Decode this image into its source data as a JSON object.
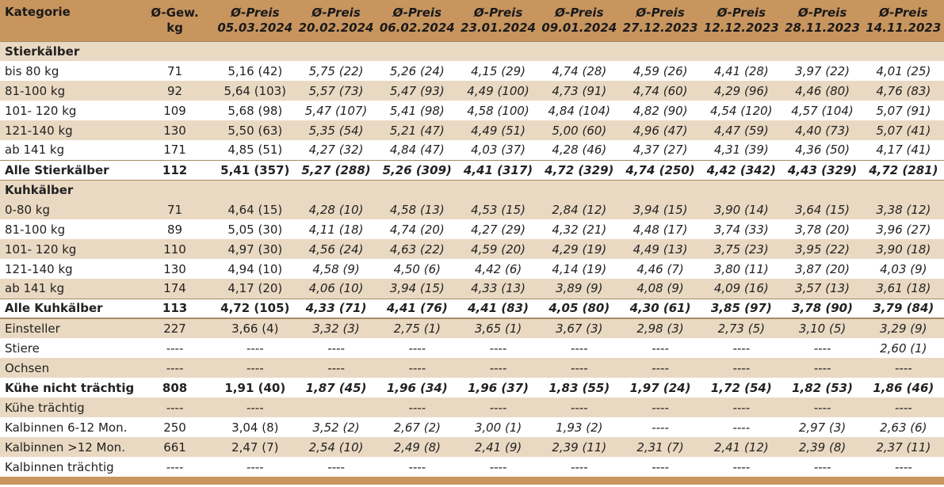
{
  "header": {
    "col0": "Kategorie",
    "col1_line1": "Ø-Gew.",
    "col1_line2": "kg",
    "price_label": "Ø-Preis",
    "dates": [
      "05.03.2024",
      "20.02.2024",
      "06.02.2024",
      "23.01.2024",
      "09.01.2024",
      "27.12.2023",
      "12.12.2023",
      "28.11.2023",
      "14.11.2023"
    ]
  },
  "sections": {
    "stier": "Stierkälber",
    "kuh": "Kuhkälber"
  },
  "rows": [
    {
      "label": "bis 80 kg",
      "kg": "71",
      "vals": [
        "5,16 (42)",
        "5,75 (22)",
        "5,26 (24)",
        "4,15 (29)",
        "4,74 (28)",
        "4,59 (26)",
        "4,41 (28)",
        "3,97 (22)",
        "4,01 (25)"
      ]
    },
    {
      "label": "81-100 kg",
      "kg": "92",
      "vals": [
        "5,64 (103)",
        "5,57 (73)",
        "5,47 (93)",
        "4,49 (100)",
        "4,73 (91)",
        "4,74 (60)",
        "4,29 (96)",
        "4,46 (80)",
        "4,76 (83)"
      ]
    },
    {
      "label": "101- 120 kg",
      "kg": "109",
      "vals": [
        "5,68 (98)",
        "5,47 (107)",
        "5,41 (98)",
        "4,58 (100)",
        "4,84 (104)",
        "4,82 (90)",
        "4,54 (120)",
        "4,57 (104)",
        "5,07 (91)"
      ]
    },
    {
      "label": "121-140 kg",
      "kg": "130",
      "vals": [
        "5,50 (63)",
        "5,35 (54)",
        "5,21 (47)",
        "4,49 (51)",
        "5,00 (60)",
        "4,96 (47)",
        "4,47 (59)",
        "4,40 (73)",
        "5,07 (41)"
      ]
    },
    {
      "label": "ab 141 kg",
      "kg": "171",
      "vals": [
        "4,85 (51)",
        "4,27 (32)",
        "4,84 (47)",
        "4,03 (37)",
        "4,28 (46)",
        "4,37 (27)",
        "4,31 (39)",
        "4,36 (50)",
        "4,17 (41)"
      ]
    },
    {
      "label": "Alle Stierkälber",
      "kg": "112",
      "vals": [
        "5,41 (357)",
        "5,27 (288)",
        "5,26 (309)",
        "4,41 (317)",
        "4,72 (329)",
        "4,74 (250)",
        "4,42 (342)",
        "4,43 (329)",
        "4,72 (281)"
      ]
    },
    {
      "label": "0-80 kg",
      "kg": "71",
      "vals": [
        "4,64 (15)",
        "4,28 (10)",
        "4,58 (13)",
        "4,53 (15)",
        "2,84 (12)",
        "3,94 (15)",
        "3,90 (14)",
        "3,64 (15)",
        "3,38 (12)"
      ]
    },
    {
      "label": "81-100 kg",
      "kg": "89",
      "vals": [
        "5,05 (30)",
        "4,11 (18)",
        "4,74 (20)",
        "4,27 (29)",
        "4,32 (21)",
        "4,48 (17)",
        "3,74 (33)",
        "3,78 (20)",
        "3,96 (27)"
      ]
    },
    {
      "label": "101- 120 kg",
      "kg": "110",
      "vals": [
        "4,97 (30)",
        "4,56 (24)",
        "4,63 (22)",
        "4,59 (20)",
        "4,29 (19)",
        "4,49 (13)",
        "3,75 (23)",
        "3,95 (22)",
        "3,90 (18)"
      ]
    },
    {
      "label": "121-140 kg",
      "kg": "130",
      "vals": [
        "4,94 (10)",
        "4,58 (9)",
        "4,50 (6)",
        "4,42 (6)",
        "4,14 (19)",
        "4,46 (7)",
        "3,80 (11)",
        "3,87 (20)",
        "4,03 (9)"
      ]
    },
    {
      "label": "ab 141 kg",
      "kg": "174",
      "vals": [
        "4,17 (20)",
        "4,06 (10)",
        "3,94 (15)",
        "4,33 (13)",
        "3,89 (9)",
        "4,08 (9)",
        "4,09 (16)",
        "3,57 (13)",
        "3,61 (18)"
      ]
    },
    {
      "label": "Alle Kuhkälber",
      "kg": "113",
      "vals": [
        "4,72 (105)",
        "4,33 (71)",
        "4,41 (76)",
        "4,41 (83)",
        "4,05 (80)",
        "4,30 (61)",
        "3,85 (97)",
        "3,78 (90)",
        "3,79 (84)"
      ]
    },
    {
      "label": "Einsteller",
      "kg": "227",
      "vals": [
        "3,66 (4)",
        "3,32 (3)",
        "2,75 (1)",
        "3,65 (1)",
        "3,67 (3)",
        "2,98 (3)",
        "2,73 (5)",
        "3,10 (5)",
        "3,29 (9)"
      ]
    },
    {
      "label": "Stiere",
      "kg": "----",
      "vals": [
        "----",
        "----",
        "----",
        "----",
        "----",
        "----",
        "----",
        "----",
        "2,60 (1)"
      ]
    },
    {
      "label": "Ochsen",
      "kg": "----",
      "vals": [
        "----",
        "----",
        "----",
        "----",
        "----",
        "----",
        "----",
        "----",
        "----"
      ]
    },
    {
      "label": "Kühe nicht trächtig",
      "kg": "808",
      "vals": [
        "1,91 (40)",
        "1,87 (45)",
        "1,96 (34)",
        "1,96 (37)",
        "1,83 (55)",
        "1,97 (24)",
        "1,72 (54)",
        "1,82 (53)",
        "1,86 (46)"
      ]
    },
    {
      "label": "Kühe trächtig",
      "kg": "----",
      "vals": [
        "----",
        "",
        "----",
        "----",
        "----",
        "----",
        "----",
        "----",
        "----"
      ]
    },
    {
      "label": "Kalbinnen 6-12 Mon.",
      "kg": "250",
      "vals": [
        "3,04 (8)",
        "3,52 (2)",
        "2,67 (2)",
        "3,00 (1)",
        "1,93 (2)",
        "----",
        "----",
        "2,97 (3)",
        "2,63 (6)"
      ]
    },
    {
      "label": "Kalbinnen >12 Mon.",
      "kg": "661",
      "vals": [
        "2,47 (7)",
        "2,54 (10)",
        "2,49 (8)",
        "2,41 (9)",
        "2,39 (11)",
        "2,31 (7)",
        "2,41 (12)",
        "2,39 (8)",
        "2,37 (11)"
      ]
    },
    {
      "label": "Kalbinnen trächtig",
      "kg": "----",
      "vals": [
        "----",
        "----",
        "----",
        "----",
        "----",
        "----",
        "----",
        "----",
        "----"
      ]
    }
  ],
  "colors": {
    "header_bg": "#c8955f",
    "stripe_bg": "#ead9c2",
    "white_bg": "#ffffff",
    "rule": "#a88a62"
  }
}
